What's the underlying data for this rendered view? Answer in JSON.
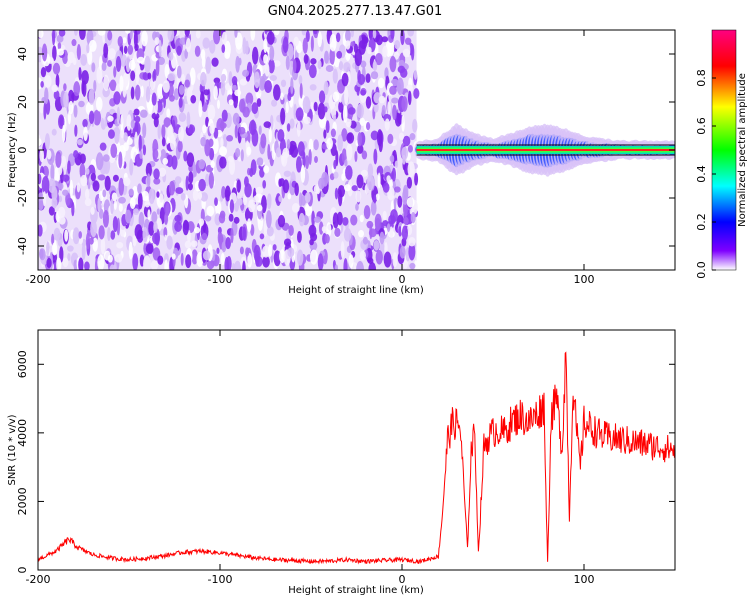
{
  "title": "GN04.2025.277.13.47.G01",
  "chart_data": [
    {
      "type": "heatmap",
      "xlabel": "Height of straight line (km)",
      "ylabel": "Frequency (Hz)",
      "xlim": [
        -200,
        150
      ],
      "ylim": [
        -50,
        50
      ],
      "x_ticks": [
        -200,
        -100,
        0,
        100
      ],
      "y_ticks": [
        -40,
        -20,
        0,
        20,
        40
      ],
      "colorbar": {
        "label": "Normalized spectral amplitude",
        "range": [
          0,
          1
        ],
        "ticks": [
          "0.0",
          "0.2",
          "0.4",
          "0.6",
          "0.8"
        ],
        "colors": [
          "#ffffff",
          "#7f00ff",
          "#0000ff",
          "#00ffff",
          "#00ff00",
          "#ffff00",
          "#ff0000",
          "#ff0080"
        ]
      },
      "noise_region_x": [
        -200,
        8
      ],
      "signal_region_x": [
        8,
        150
      ],
      "signal_frequency": 0,
      "signal_trace": [
        {
          "x": 10,
          "width": 3
        },
        {
          "x": 20,
          "width": 4
        },
        {
          "x": 30,
          "width": 10
        },
        {
          "x": 40,
          "width": 6
        },
        {
          "x": 50,
          "width": 4
        },
        {
          "x": 60,
          "width": 6
        },
        {
          "x": 70,
          "width": 9
        },
        {
          "x": 80,
          "width": 10
        },
        {
          "x": 90,
          "width": 8
        },
        {
          "x": 100,
          "width": 5
        },
        {
          "x": 110,
          "width": 4
        },
        {
          "x": 120,
          "width": 3
        },
        {
          "x": 130,
          "width": 3
        },
        {
          "x": 140,
          "width": 3
        },
        {
          "x": 150,
          "width": 3
        }
      ]
    },
    {
      "type": "line",
      "xlabel": "Height of straight line (km)",
      "ylabel": "SNR (10 * v/v)",
      "xlim": [
        -200,
        150
      ],
      "ylim": [
        0,
        7000
      ],
      "x_ticks": [
        -200,
        -100,
        0,
        100
      ],
      "y_ticks": [
        0,
        2000,
        4000,
        6000
      ],
      "color": "#ff0000",
      "series": [
        {
          "x": [
            -200,
            -190,
            -183,
            -178,
            -170,
            -160,
            -150,
            -140,
            -130,
            -120,
            -110,
            -100,
            -90,
            -80,
            -70,
            -60,
            -50,
            -40,
            -30,
            -20,
            -10,
            0,
            10,
            20,
            22,
            25,
            28,
            32,
            36,
            38,
            40,
            42,
            45,
            48,
            52,
            56,
            60,
            65,
            70,
            75,
            78,
            80,
            82,
            85,
            88,
            90,
            92,
            94,
            96,
            98,
            100,
            105,
            110,
            120,
            130,
            140,
            150
          ],
          "y": [
            300,
            550,
            900,
            650,
            450,
            350,
            300,
            350,
            420,
            520,
            550,
            500,
            420,
            350,
            300,
            280,
            250,
            260,
            300,
            250,
            280,
            300,
            250,
            400,
            1500,
            3800,
            4300,
            4200,
            600,
            3500,
            4000,
            500,
            3600,
            3900,
            4100,
            4000,
            4300,
            4500,
            4300,
            4600,
            4800,
            200,
            4500,
            5000,
            3500,
            6500,
            1500,
            5500,
            4000,
            3000,
            4300,
            4100,
            3900,
            3800,
            3700,
            3600,
            3500
          ]
        }
      ]
    }
  ]
}
